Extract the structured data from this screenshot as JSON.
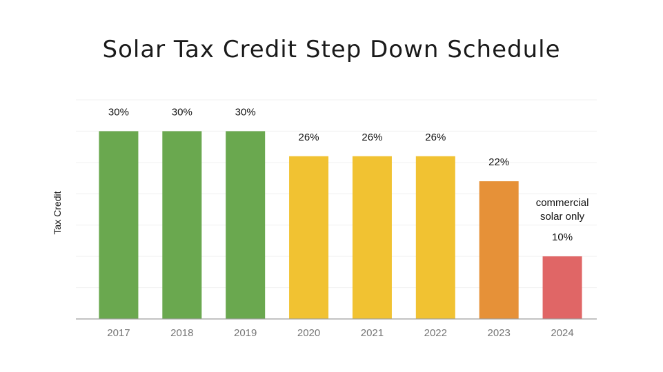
{
  "chart_data": {
    "type": "bar",
    "title": "Solar Tax Credit Step Down Schedule",
    "ylabel": "Tax Credit",
    "xlabel": "",
    "categories": [
      "2017",
      "2018",
      "2019",
      "2020",
      "2021",
      "2022",
      "2023",
      "2024"
    ],
    "values": [
      30,
      30,
      30,
      26,
      26,
      26,
      22,
      10
    ],
    "data_labels": [
      "30%",
      "30%",
      "30%",
      "26%",
      "26%",
      "26%",
      "22%",
      "10%"
    ],
    "colors": [
      "#6aa84f",
      "#6aa84f",
      "#6aa84f",
      "#f1c232",
      "#f1c232",
      "#f1c232",
      "#e69138",
      "#e06666"
    ],
    "ylim": [
      0,
      35
    ],
    "grid": true,
    "legend": "none",
    "annotations": [
      {
        "category": "2024",
        "lines": [
          "commercial",
          "solar only"
        ]
      }
    ]
  }
}
